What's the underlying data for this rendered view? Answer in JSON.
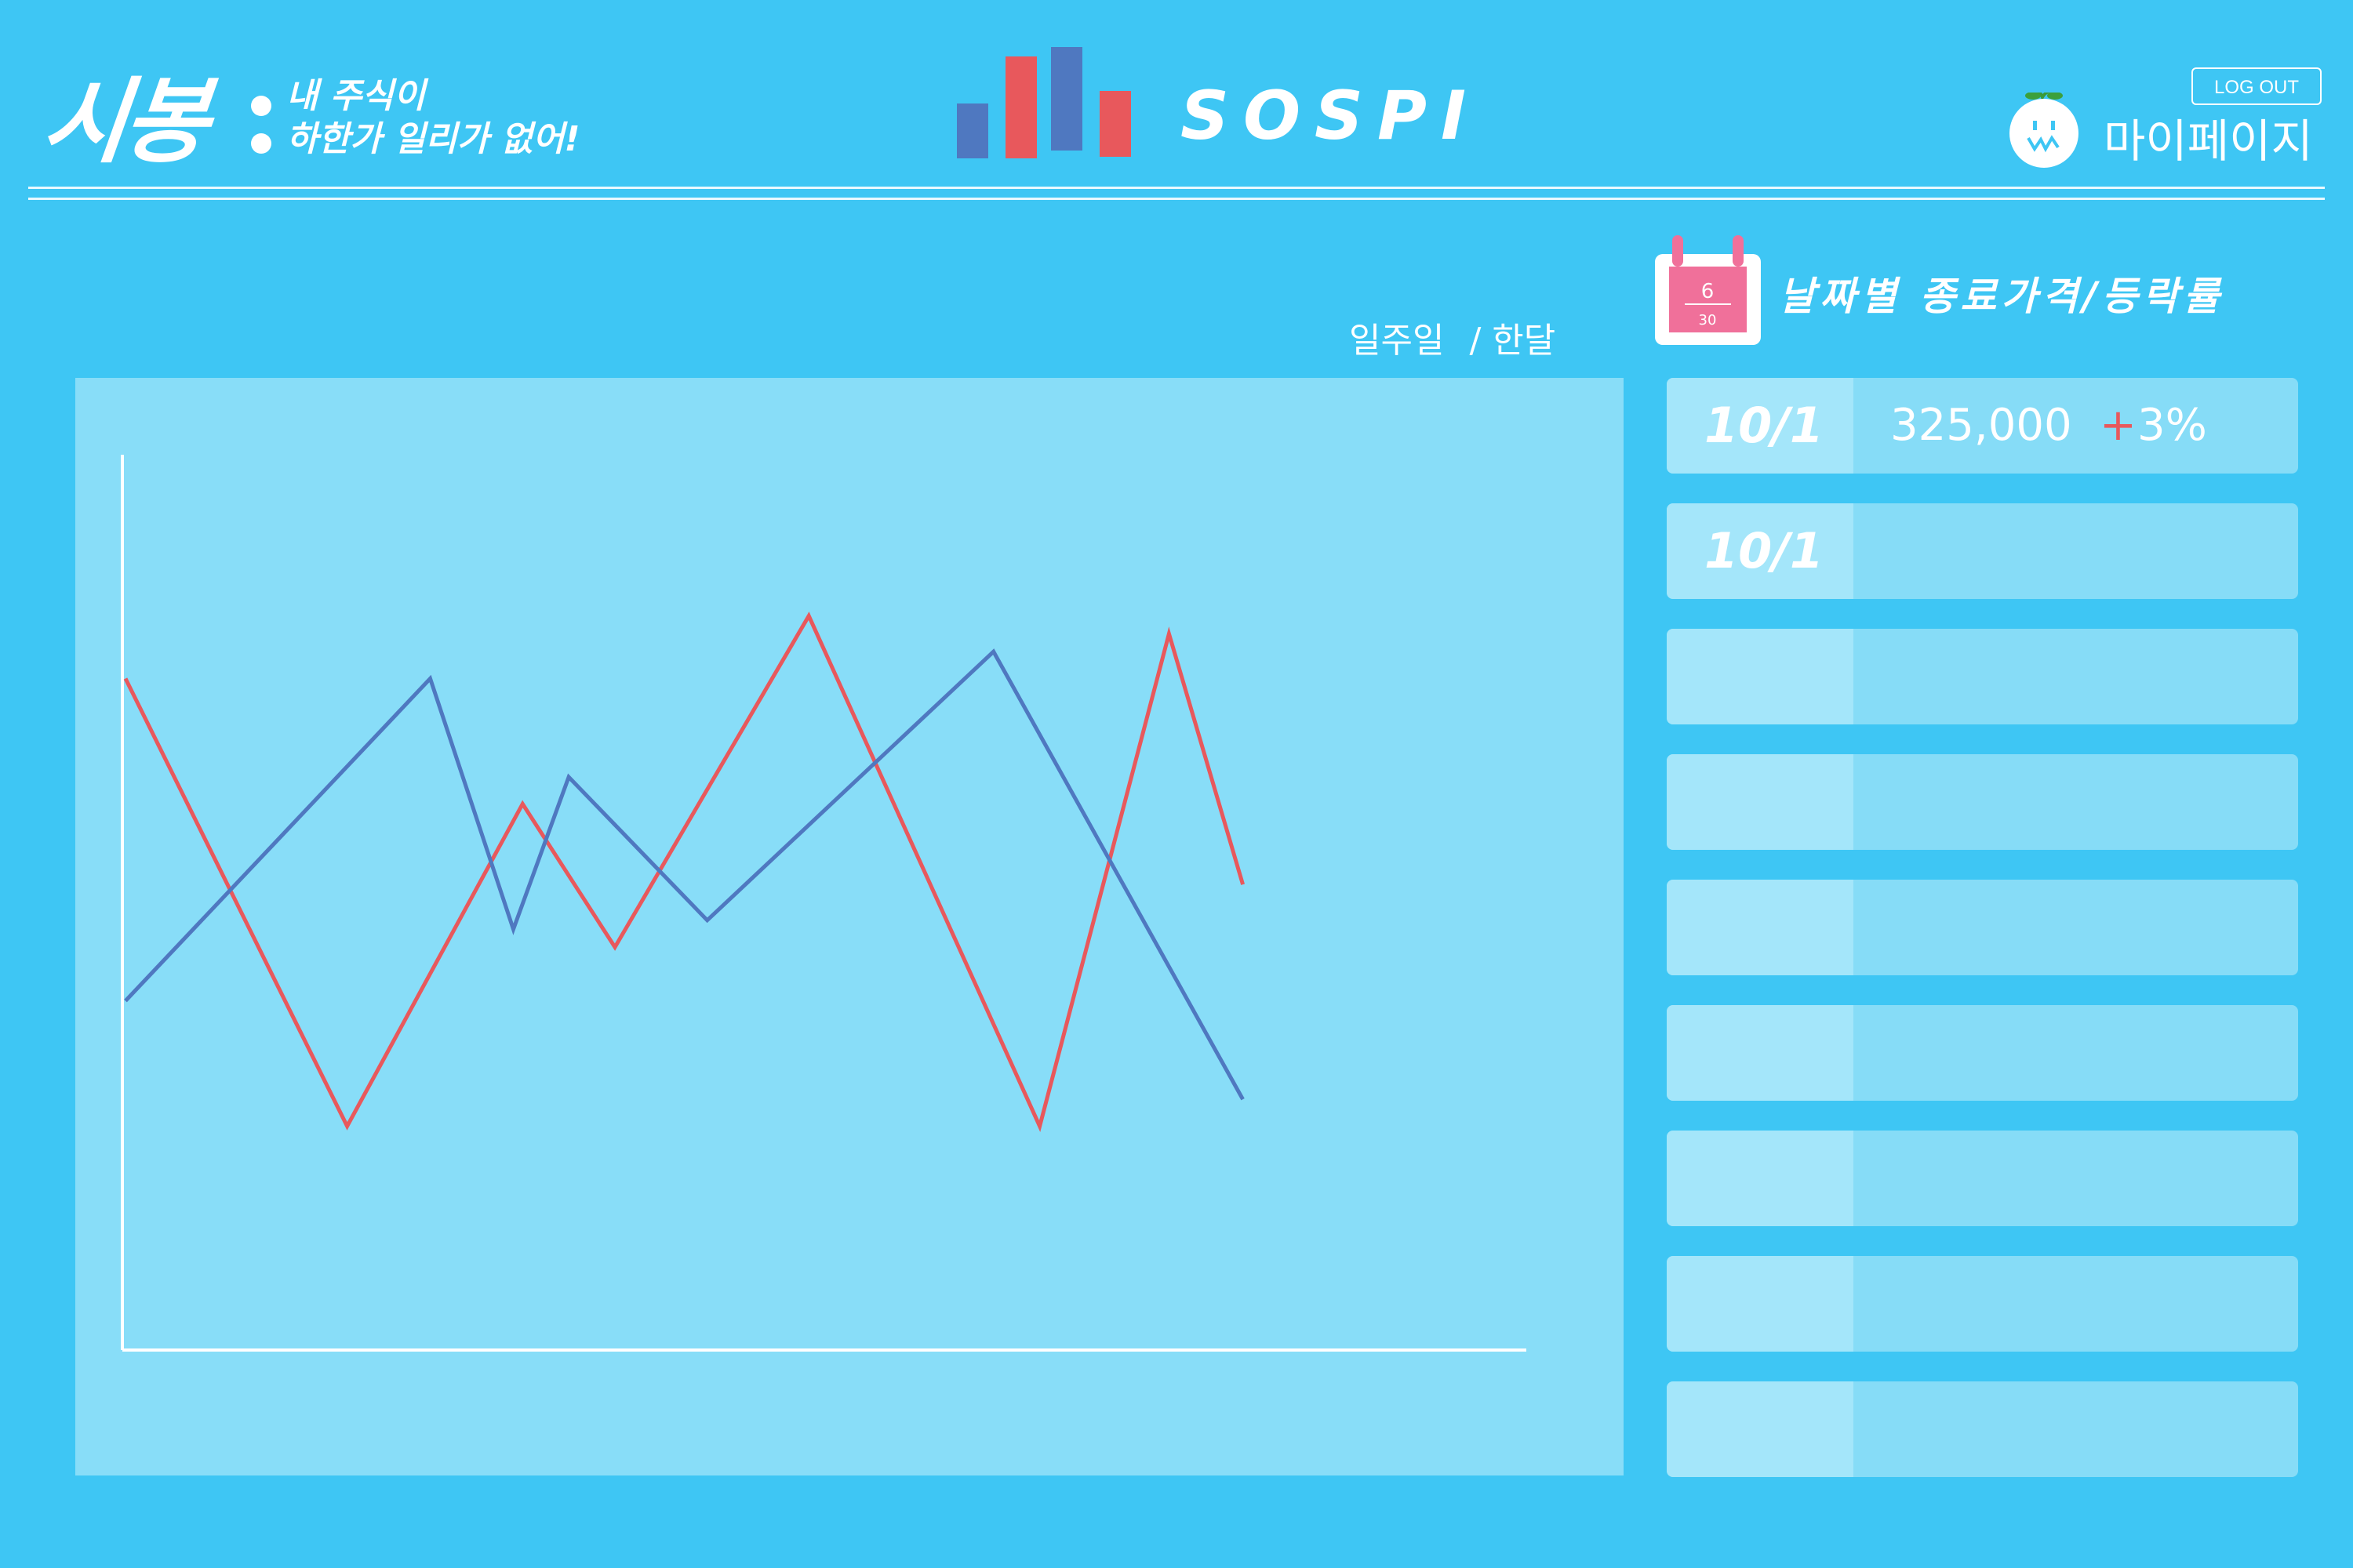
{
  "header": {
    "logo_text": "시봉",
    "tagline_line1": "내 주식이",
    "tagline_line2": "하한가 일리가 없어!",
    "brand_name": "SOSPI",
    "logout_label": "LOG OUT",
    "mypage_label": "마이페이지"
  },
  "calendar_icon": {
    "month": "6",
    "day": "30"
  },
  "section_title": "날짜별 종료가격/등락률",
  "period_toggle": {
    "week_label": "일주일",
    "separator": "/",
    "month_label": "한달"
  },
  "price_list": [
    {
      "date": "10/1",
      "price": "325,000",
      "change_sign": "+",
      "change": "3%"
    },
    {
      "date": "10/1",
      "price": "",
      "change_sign": "",
      "change": ""
    },
    {
      "date": "",
      "price": "",
      "change_sign": "",
      "change": ""
    },
    {
      "date": "",
      "price": "",
      "change_sign": "",
      "change": ""
    },
    {
      "date": "",
      "price": "",
      "change_sign": "",
      "change": ""
    },
    {
      "date": "",
      "price": "",
      "change_sign": "",
      "change": ""
    },
    {
      "date": "",
      "price": "",
      "change_sign": "",
      "change": ""
    },
    {
      "date": "",
      "price": "",
      "change_sign": "",
      "change": ""
    },
    {
      "date": "",
      "price": "",
      "change_sign": "",
      "change": ""
    }
  ],
  "colors": {
    "background": "#3ec6f4",
    "panel": "#88ddf8",
    "series_red": "#e8585c",
    "series_blue": "#4f78c0",
    "calendar_pink": "#f0709a"
  },
  "chart_data": {
    "type": "line",
    "title": "",
    "xlabel": "",
    "ylabel": "",
    "x": [
      0,
      1,
      2,
      3,
      4,
      5,
      6,
      7,
      8,
      9,
      10,
      11,
      12,
      13,
      14,
      15
    ],
    "ylim": [
      0,
      100
    ],
    "grid": false,
    "series": [
      {
        "color": "#e8585c",
        "points": [
          [
            0.0,
            75
          ],
          [
            2.4,
            25
          ],
          [
            4.3,
            61
          ],
          [
            5.3,
            45
          ],
          [
            7.4,
            82
          ],
          [
            9.9,
            25
          ],
          [
            11.3,
            80
          ],
          [
            12.1,
            52
          ]
        ]
      },
      {
        "color": "#4f78c0",
        "points": [
          [
            0.0,
            39
          ],
          [
            3.3,
            75
          ],
          [
            4.2,
            47
          ],
          [
            4.8,
            64
          ],
          [
            6.3,
            48
          ],
          [
            9.4,
            78
          ],
          [
            12.1,
            28
          ]
        ]
      }
    ]
  }
}
